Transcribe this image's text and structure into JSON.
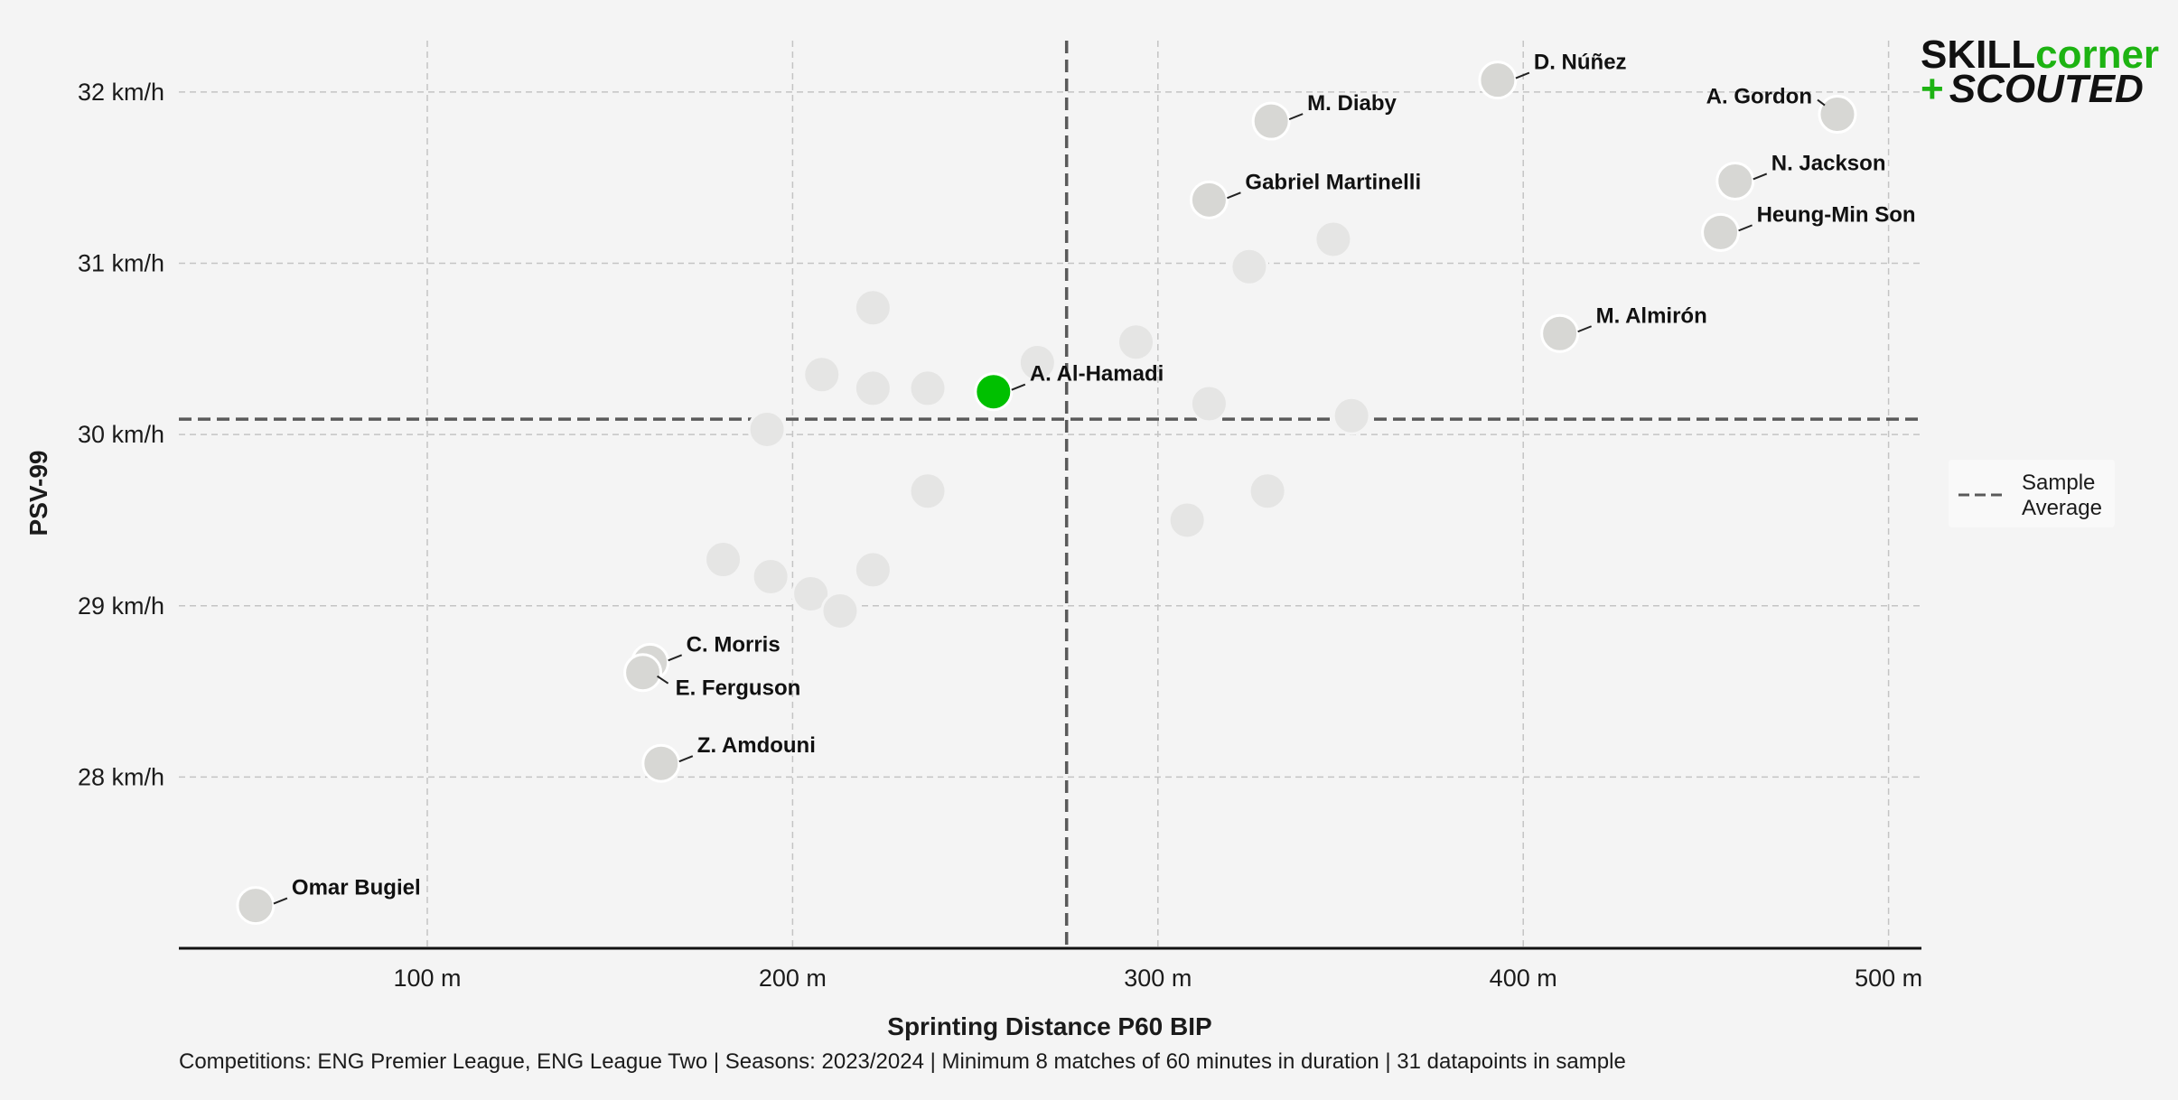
{
  "logo": {
    "part1": "SKILL",
    "part2": "corner",
    "part3": "+",
    "part4": "SCOUTED"
  },
  "colors": {
    "background": "#f4f4f4",
    "highlight": "#00c000",
    "labeled_point": "#d7d7d4",
    "faded_point": "#e5e5e4",
    "average_line": "#5a5a5a",
    "grid": "#c4c4c4",
    "logo_dark": "#111111",
    "logo_green": "#1db312"
  },
  "legend": {
    "line1": "Sample",
    "line2": "Average"
  },
  "caption": "Competitions: ENG Premier League, ENG League Two | Seasons: 2023/2024 | Minimum 8 matches of 60 minutes in duration | 31 datapoints in sample",
  "chart_data": {
    "type": "scatter",
    "title": "",
    "xlabel": "Sprinting Distance P60 BIP",
    "ylabel": "PSV-99",
    "xlim": [
      32,
      509
    ],
    "ylim": [
      27.0,
      32.3
    ],
    "xticks": [
      {
        "value": 100,
        "label": "100 m"
      },
      {
        "value": 200,
        "label": "200 m"
      },
      {
        "value": 300,
        "label": "300 m"
      },
      {
        "value": 400,
        "label": "400 m"
      },
      {
        "value": 500,
        "label": "500 m"
      }
    ],
    "yticks": [
      {
        "value": 28,
        "label": "28 km/h"
      },
      {
        "value": 29,
        "label": "29 km/h"
      },
      {
        "value": 30,
        "label": "30 km/h"
      },
      {
        "value": 31,
        "label": "31 km/h"
      },
      {
        "value": 32,
        "label": "32 km/h"
      }
    ],
    "grid": true,
    "legend_position": "right",
    "average": {
      "x": 275,
      "y": 30.09
    },
    "highlight": {
      "label": "A. Al-Hamadi",
      "x": 255,
      "y": 30.25
    },
    "labeled_points": [
      {
        "label": "D. Núñez",
        "x": 393,
        "y": 32.07,
        "anchor": "right"
      },
      {
        "label": "M. Diaby",
        "x": 331,
        "y": 31.83,
        "anchor": "right"
      },
      {
        "label": "A. Gordon",
        "x": 486,
        "y": 31.87,
        "anchor": "left"
      },
      {
        "label": "N. Jackson",
        "x": 458,
        "y": 31.48,
        "anchor": "right"
      },
      {
        "label": "Gabriel Martinelli",
        "x": 314,
        "y": 31.37,
        "anchor": "right"
      },
      {
        "label": "Heung-Min Son",
        "x": 454,
        "y": 31.18,
        "anchor": "right"
      },
      {
        "label": "M. Almirón",
        "x": 410,
        "y": 30.59,
        "anchor": "right"
      },
      {
        "label": "C. Morris",
        "x": 161,
        "y": 28.67,
        "anchor": "right"
      },
      {
        "label": "E. Ferguson",
        "x": 159,
        "y": 28.61,
        "anchor": "right-below"
      },
      {
        "label": "Z. Amdouni",
        "x": 164,
        "y": 28.08,
        "anchor": "right"
      },
      {
        "label": "Omar Bugiel",
        "x": 53,
        "y": 27.25,
        "anchor": "right"
      }
    ],
    "other_points": [
      {
        "x": 222,
        "y": 30.74
      },
      {
        "x": 208,
        "y": 30.35
      },
      {
        "x": 222,
        "y": 30.27
      },
      {
        "x": 237,
        "y": 30.27
      },
      {
        "x": 267,
        "y": 30.42
      },
      {
        "x": 294,
        "y": 30.54
      },
      {
        "x": 314,
        "y": 30.18
      },
      {
        "x": 325,
        "y": 30.98
      },
      {
        "x": 348,
        "y": 31.14
      },
      {
        "x": 353,
        "y": 30.11
      },
      {
        "x": 193,
        "y": 30.03
      },
      {
        "x": 237,
        "y": 29.67
      },
      {
        "x": 330,
        "y": 29.67
      },
      {
        "x": 308,
        "y": 29.5
      },
      {
        "x": 181,
        "y": 29.27
      },
      {
        "x": 194,
        "y": 29.17
      },
      {
        "x": 205,
        "y": 29.07
      },
      {
        "x": 222,
        "y": 29.21
      },
      {
        "x": 213,
        "y": 28.97
      }
    ]
  }
}
